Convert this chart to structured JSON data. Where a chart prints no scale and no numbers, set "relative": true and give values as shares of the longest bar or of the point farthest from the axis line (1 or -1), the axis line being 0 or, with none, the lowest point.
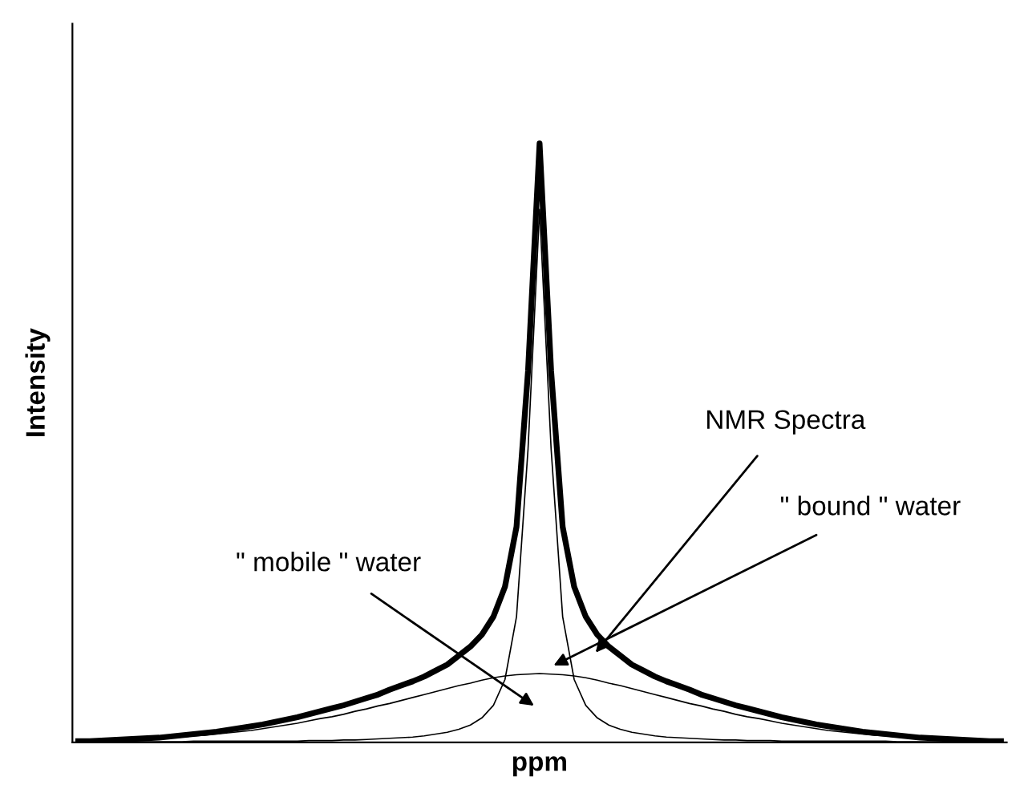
{
  "chart_data": {
    "type": "line",
    "relative": true,
    "xlabel": "ppm",
    "ylabel": "Intensity",
    "legend": false,
    "marker": "none",
    "line_style": "solid",
    "categories": [
      null,
      null,
      null,
      null,
      null,
      null,
      null,
      null,
      null,
      null,
      null,
      null,
      null,
      null,
      null,
      null,
      null,
      null,
      null,
      null,
      null,
      null,
      null,
      null,
      null,
      null,
      null,
      null,
      null,
      null,
      null,
      null,
      null,
      null,
      null,
      null,
      null,
      null,
      null,
      null,
      null,
      null,
      null,
      null,
      null,
      null,
      null,
      null,
      null,
      null,
      null,
      null,
      null,
      null,
      null,
      null,
      null,
      null,
      null,
      null,
      null,
      null,
      null,
      null,
      null,
      null,
      null,
      null,
      null,
      null,
      null,
      null,
      null,
      null,
      null,
      null,
      null,
      null,
      null,
      null,
      null
    ],
    "series": [
      {
        "color": "#000000",
        "values": [
          0.002,
          0.002,
          0.003,
          0.004,
          0.005,
          0.006,
          0.007,
          0.008,
          0.01,
          0.012,
          0.014,
          0.016,
          0.018,
          0.021,
          0.024,
          0.027,
          0.03,
          0.034,
          0.038,
          0.042,
          0.047,
          0.052,
          0.057,
          0.062,
          0.068,
          0.074,
          0.08,
          0.088,
          0.095,
          0.102,
          0.11,
          0.12,
          0.13,
          0.145,
          0.16,
          0.18,
          0.21,
          0.26,
          0.36,
          0.62,
          1.0,
          0.62,
          0.36,
          0.26,
          0.21,
          0.18,
          0.16,
          0.145,
          0.13,
          0.12,
          0.11,
          0.102,
          0.095,
          0.088,
          0.08,
          0.074,
          0.068,
          0.062,
          0.057,
          0.052,
          0.047,
          0.042,
          0.038,
          0.034,
          0.03,
          0.027,
          0.024,
          0.021,
          0.018,
          0.016,
          0.014,
          0.012,
          0.01,
          0.008,
          0.007,
          0.006,
          0.005,
          0.004,
          0.003,
          0.002,
          0.002
        ]
      },
      {
        "color": "#000000",
        "values": [
          0.001,
          0.001,
          0.001,
          0.001,
          0.001,
          0.001,
          0.001,
          0.001,
          0.001,
          0.001,
          0.002,
          0.002,
          0.002,
          0.002,
          0.002,
          0.002,
          0.002,
          0.002,
          0.002,
          0.002,
          0.003,
          0.003,
          0.003,
          0.004,
          0.004,
          0.005,
          0.006,
          0.007,
          0.008,
          0.009,
          0.011,
          0.014,
          0.017,
          0.022,
          0.029,
          0.041,
          0.062,
          0.105,
          0.21,
          0.49,
          0.89,
          0.49,
          0.21,
          0.105,
          0.062,
          0.041,
          0.029,
          0.022,
          0.017,
          0.014,
          0.011,
          0.009,
          0.008,
          0.007,
          0.006,
          0.005,
          0.004,
          0.004,
          0.003,
          0.003,
          0.003,
          0.002,
          0.002,
          0.002,
          0.002,
          0.002,
          0.002,
          0.002,
          0.002,
          0.002,
          0.002,
          0.001,
          0.001,
          0.001,
          0.001,
          0.001,
          0.001,
          0.001,
          0.001,
          0.001,
          0.001
        ]
      },
      {
        "color": "#000000",
        "values": [
          0.002,
          0.003,
          0.003,
          0.004,
          0.004,
          0.005,
          0.006,
          0.007,
          0.008,
          0.009,
          0.011,
          0.012,
          0.014,
          0.016,
          0.018,
          0.02,
          0.023,
          0.026,
          0.029,
          0.032,
          0.036,
          0.04,
          0.043,
          0.047,
          0.052,
          0.056,
          0.061,
          0.065,
          0.07,
          0.075,
          0.08,
          0.085,
          0.09,
          0.095,
          0.099,
          0.104,
          0.108,
          0.111,
          0.113,
          0.114,
          0.115,
          0.114,
          0.113,
          0.111,
          0.108,
          0.104,
          0.099,
          0.095,
          0.09,
          0.085,
          0.08,
          0.075,
          0.07,
          0.065,
          0.061,
          0.056,
          0.052,
          0.047,
          0.043,
          0.04,
          0.036,
          0.032,
          0.029,
          0.026,
          0.023,
          0.02,
          0.018,
          0.016,
          0.014,
          0.012,
          0.011,
          0.009,
          0.008,
          0.007,
          0.006,
          0.005,
          0.004,
          0.004,
          0.003,
          0.003,
          0.002
        ]
      }
    ],
    "annotations": [
      "NMR Spectra",
      "\" bound \" water",
      "\" mobile \" water"
    ]
  }
}
